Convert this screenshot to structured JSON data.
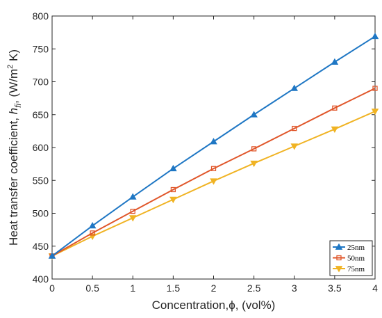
{
  "chart_data": {
    "type": "line",
    "title": "",
    "xlabel": "Concentration,ϕ, (vol%)",
    "ylabel": {
      "prefix": "Heat transfer coefficient, ",
      "symbol": "h",
      "subscript": "fi",
      "unit_pre": ", (W/m",
      "unit_sup": "2",
      "unit_post": " K)"
    },
    "xlim": [
      0,
      4
    ],
    "ylim": [
      400,
      800
    ],
    "xticks": [
      "0",
      "0.5",
      "1",
      "1.5",
      "2",
      "2.5",
      "3",
      "3.5",
      "4"
    ],
    "yticks": [
      "400",
      "450",
      "500",
      "550",
      "600",
      "650",
      "700",
      "750",
      "800"
    ],
    "grid": false,
    "legend_position": "bottom-right",
    "x": [
      0,
      0.5,
      1,
      1.5,
      2,
      2.5,
      3,
      3.5,
      4
    ],
    "series": [
      {
        "name": "25nm",
        "color": "#1f77c4",
        "marker": "triangle-up",
        "values": [
          435,
          481,
          525,
          568,
          609,
          650,
          690,
          730,
          769
        ]
      },
      {
        "name": "50nm",
        "color": "#e0562a",
        "marker": "square",
        "values": [
          435,
          470,
          503,
          536,
          568,
          598,
          629,
          660,
          690
        ]
      },
      {
        "name": "75nm",
        "color": "#f0b323",
        "marker": "triangle-down",
        "values": [
          435,
          465,
          493,
          521,
          549,
          576,
          602,
          628,
          655
        ]
      }
    ]
  }
}
